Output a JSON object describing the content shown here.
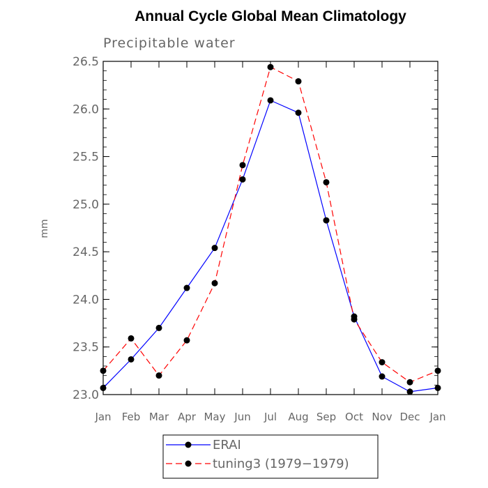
{
  "chart_data": {
    "type": "line",
    "title": "Annual Cycle Global Mean Climatology",
    "subtitle": "Precipitable water",
    "xlabel": "",
    "ylabel": "mm",
    "categories": [
      "Jan",
      "Feb",
      "Mar",
      "Apr",
      "May",
      "Jun",
      "Jul",
      "Aug",
      "Sep",
      "Oct",
      "Nov",
      "Dec",
      "Jan"
    ],
    "ylim": [
      23.0,
      26.5
    ],
    "yticks": [
      "23.0",
      "23.5",
      "24.0",
      "24.5",
      "25.0",
      "25.5",
      "26.0",
      "26.5"
    ],
    "grid": false,
    "legend_position": "bottom",
    "series": [
      {
        "name": "ERAI",
        "color": "#0000ff",
        "dash": "solid",
        "marker": "filled-circle",
        "values": [
          23.07,
          23.37,
          23.7,
          24.12,
          24.54,
          25.26,
          26.09,
          25.96,
          24.83,
          23.82,
          23.19,
          23.03,
          23.07
        ]
      },
      {
        "name": "tuning3 (1979−1979)",
        "color": "#ff0000",
        "dash": "dashed",
        "marker": "filled-circle",
        "values": [
          23.25,
          23.59,
          23.2,
          23.57,
          24.17,
          25.41,
          26.44,
          26.29,
          25.23,
          23.79,
          23.34,
          23.13,
          23.25
        ]
      }
    ]
  }
}
